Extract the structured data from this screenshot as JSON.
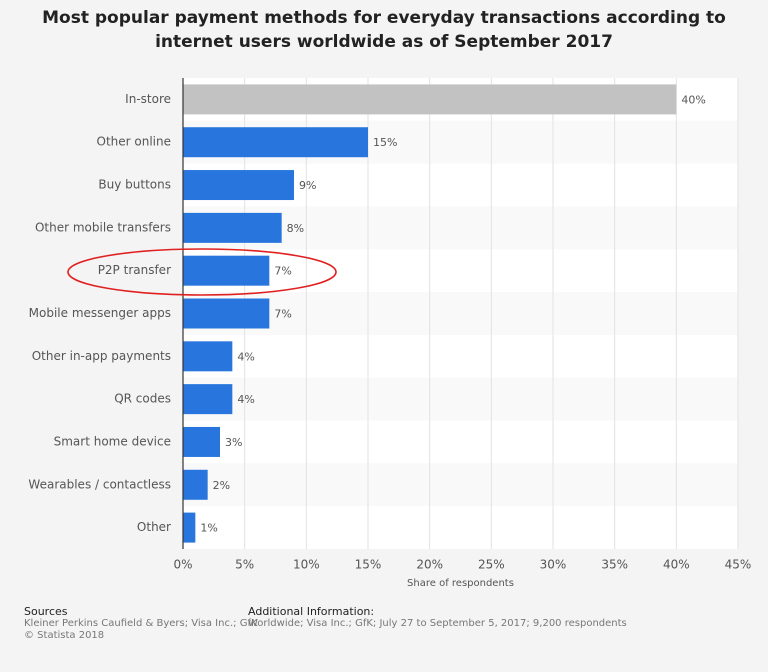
{
  "chart_data": {
    "type": "barh",
    "title": "Most popular payment methods for everyday transactions according to internet users worldwide as of September 2017",
    "categories": [
      "In-store",
      "Other online",
      "Buy buttons",
      "Other mobile transfers",
      "P2P transfer",
      "Mobile messenger apps",
      "Other in-app payments",
      "QR codes",
      "Smart home device",
      "Wearables / contactless",
      "Other"
    ],
    "values": [
      40,
      15,
      9,
      8,
      7,
      7,
      4,
      4,
      3,
      2,
      1
    ],
    "value_labels": [
      "40%",
      "15%",
      "9%",
      "8%",
      "7%",
      "7%",
      "4%",
      "4%",
      "3%",
      "2%",
      "1%"
    ],
    "colors": [
      "#c2c2c2",
      "#2876dd",
      "#2876dd",
      "#2876dd",
      "#2876dd",
      "#2876dd",
      "#2876dd",
      "#2876dd",
      "#2876dd",
      "#2876dd",
      "#2876dd"
    ],
    "xlabel": "Share of respondents",
    "xlim": [
      0,
      45
    ],
    "xticks": [
      {
        "value": 0,
        "label": "0%"
      },
      {
        "value": 5,
        "label": "5%"
      },
      {
        "value": 10,
        "label": "10%"
      },
      {
        "value": 15,
        "label": "15%"
      },
      {
        "value": 20,
        "label": "20%"
      },
      {
        "value": 25,
        "label": "25%"
      },
      {
        "value": 30,
        "label": "30%"
      },
      {
        "value": 35,
        "label": "35%"
      },
      {
        "value": 40,
        "label": "40%"
      },
      {
        "value": 45,
        "label": "45%"
      }
    ],
    "grid": true
  },
  "footer": {
    "sources_title": "Sources",
    "sources": "Kleiner Perkins Caufield & Byers; Visa Inc.; GfK",
    "copyright": "© Statista 2018",
    "info_title": "Additional Information:",
    "info": "Worldwide; Visa Inc.; GfK; July 27 to September 5, 2017; 9,200 respondents"
  }
}
